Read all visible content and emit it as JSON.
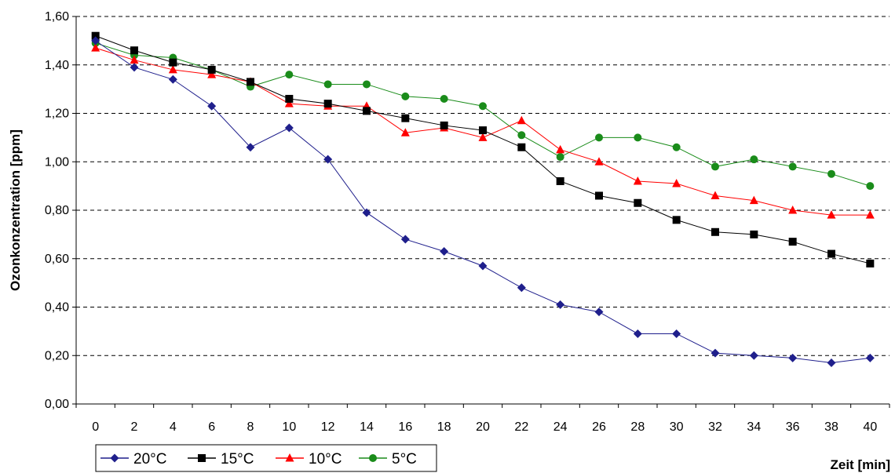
{
  "chart_data": {
    "type": "line",
    "title": "",
    "xlabel": "Zeit [min]",
    "ylabel": "Ozonkonzentration [ppm]",
    "ylim": [
      0,
      1.6
    ],
    "y_ticks": [
      "0,00",
      "0,20",
      "0,40",
      "0,60",
      "0,80",
      "1,00",
      "1,20",
      "1,40",
      "1,60"
    ],
    "x": [
      0,
      2,
      4,
      6,
      8,
      10,
      12,
      14,
      16,
      18,
      20,
      22,
      24,
      26,
      28,
      30,
      32,
      34,
      36,
      38,
      40
    ],
    "grid": "horizontal dashed",
    "legend_position": "bottom-left",
    "series": [
      {
        "name": "20°C",
        "color": "#1f1f8c",
        "marker": "diamond",
        "values": [
          1.5,
          1.39,
          1.34,
          1.23,
          1.06,
          1.14,
          1.01,
          0.79,
          0.68,
          0.63,
          0.57,
          0.48,
          0.41,
          0.38,
          0.29,
          0.29,
          0.21,
          0.2,
          0.19,
          0.17,
          0.19
        ]
      },
      {
        "name": "15°C",
        "color": "#000000",
        "marker": "square",
        "values": [
          1.52,
          1.46,
          1.41,
          1.38,
          1.33,
          1.26,
          1.24,
          1.21,
          1.18,
          1.15,
          1.13,
          1.06,
          0.92,
          0.86,
          0.83,
          0.76,
          0.71,
          0.7,
          0.67,
          0.62,
          0.58
        ]
      },
      {
        "name": "10°C",
        "color": "#ff0000",
        "marker": "triangle",
        "values": [
          1.47,
          1.42,
          1.38,
          1.36,
          1.33,
          1.24,
          1.23,
          1.23,
          1.12,
          1.14,
          1.1,
          1.17,
          1.05,
          1.0,
          0.92,
          0.91,
          0.86,
          0.84,
          0.8,
          0.78,
          0.78
        ]
      },
      {
        "name": "5°C",
        "color": "#1a8c1a",
        "marker": "circle",
        "values": [
          1.49,
          1.44,
          1.43,
          1.38,
          1.31,
          1.36,
          1.32,
          1.32,
          1.27,
          1.26,
          1.23,
          1.11,
          1.02,
          1.1,
          1.1,
          1.06,
          0.98,
          1.01,
          0.98,
          0.95,
          0.9
        ]
      }
    ]
  }
}
